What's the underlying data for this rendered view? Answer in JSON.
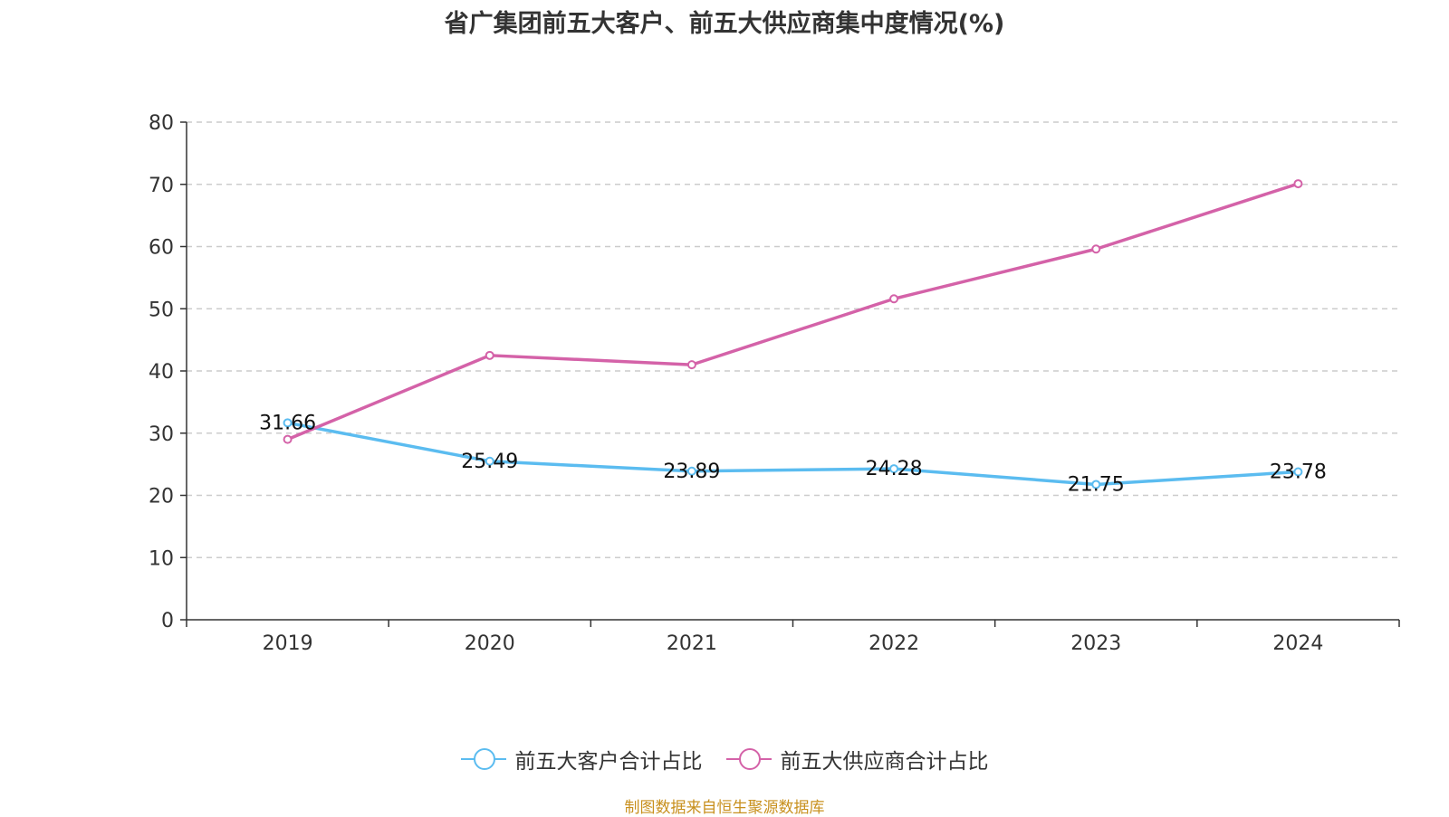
{
  "chart_data": {
    "type": "line",
    "title": "省广集团前五大客户、前五大供应商集中度情况(%)",
    "categories": [
      "2019",
      "2020",
      "2021",
      "2022",
      "2023",
      "2024"
    ],
    "ylim": [
      0,
      80
    ],
    "yticks": [
      0,
      10,
      20,
      30,
      40,
      50,
      60,
      70,
      80
    ],
    "grid": true,
    "legend_position": "bottom-center",
    "series": [
      {
        "name": "前五大客户合计占比",
        "color": "#5bbcf0",
        "values": [
          31.66,
          25.49,
          23.89,
          24.28,
          21.75,
          23.78
        ],
        "labels": [
          "31.66",
          "25.49",
          "23.89",
          "24.28",
          "21.75",
          "23.78"
        ]
      },
      {
        "name": "前五大供应商合计占比",
        "color": "#d462a8",
        "values": [
          29.0,
          42.5,
          41.0,
          51.6,
          59.6,
          70.1
        ],
        "labels": []
      }
    ]
  },
  "source_note": "制图数据来自恒生聚源数据库"
}
